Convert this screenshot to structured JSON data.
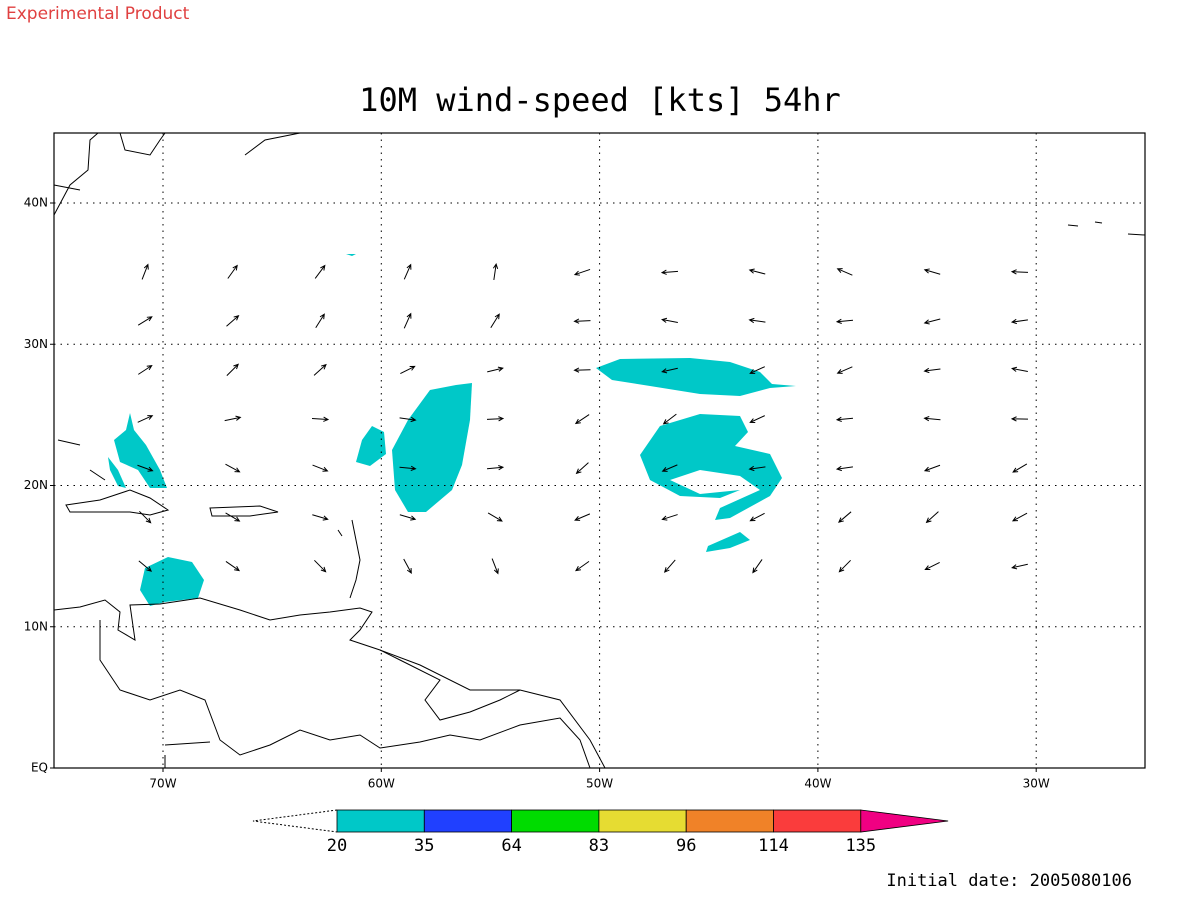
{
  "header": {
    "label": "Experimental Product"
  },
  "title": "10M wind-speed [kts] 54hr",
  "map": {
    "lat_labels": [
      "40N",
      "30N",
      "20N",
      "10N",
      "EQ"
    ],
    "lon_labels": [
      "70W",
      "60W",
      "50W",
      "40W",
      "30W"
    ]
  },
  "colorbar": {
    "labels": [
      "20",
      "35",
      "64",
      "83",
      "96",
      "114",
      "135"
    ],
    "colors": [
      "#00c8c8",
      "#2040ff",
      "#00dc00",
      "#e6dc32",
      "#f08228",
      "#fa3c3c",
      "#f00082"
    ]
  },
  "footer": {
    "initial_date": "Initial date: 2005080106"
  }
}
